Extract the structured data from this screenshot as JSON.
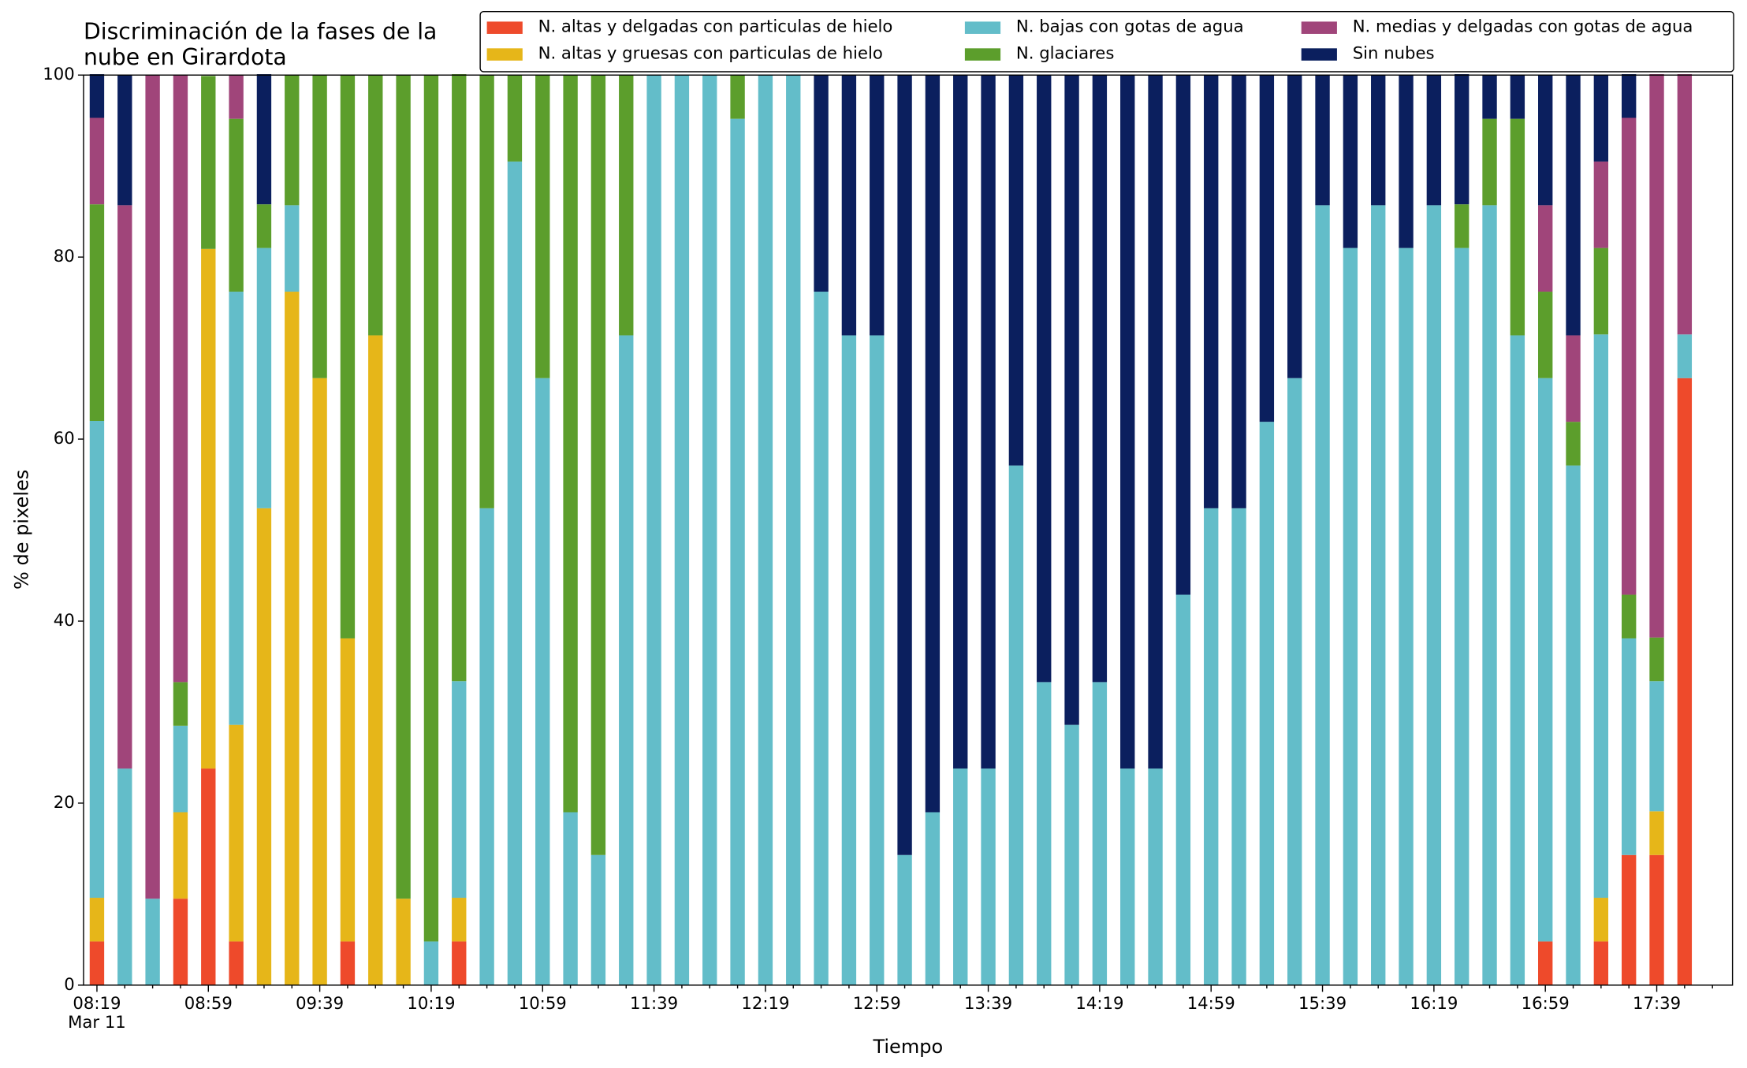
{
  "chart_data": {
    "type": "stacked_bar",
    "title": [
      "Discriminación de la fases de la",
      "nube en Girardota"
    ],
    "xlabel": "Tiempo",
    "ylabel": "% de pixeles",
    "x_sublabel": "Mar 11",
    "categories": [
      "08:19",
      null,
      null,
      null,
      "08:59",
      null,
      null,
      null,
      "09:39",
      null,
      null,
      null,
      "10:19",
      null,
      null,
      null,
      "10:59",
      null,
      null,
      null,
      "11:39",
      null,
      null,
      null,
      "12:19",
      null,
      null,
      null,
      "12:59",
      null,
      null,
      null,
      "13:39",
      null,
      null,
      null,
      "14:19",
      null,
      null,
      null,
      "14:59",
      null,
      null,
      null,
      "15:39",
      null,
      null,
      null,
      "16:19",
      null,
      null,
      null,
      "16:59",
      null,
      null,
      null,
      "17:39",
      null
    ],
    "ylim": [
      0,
      100
    ],
    "yticks": [
      0,
      20,
      40,
      60,
      80,
      100
    ],
    "legend": "top-right",
    "series": [
      {
        "name": "N. altas y delgadas con particulas de hielo",
        "color": "#ee4a2b",
        "values": [
          4.8,
          0,
          0,
          9.5,
          23.8,
          4.8,
          0,
          0,
          0,
          4.8,
          0,
          0,
          0,
          4.8,
          0,
          0,
          0,
          0,
          0,
          0,
          0,
          0,
          0,
          0,
          0,
          0,
          0,
          0,
          0,
          0,
          0,
          0,
          0,
          0,
          0,
          0,
          0,
          0,
          0,
          0,
          0,
          0,
          0,
          0,
          0,
          0,
          0,
          0,
          0,
          0,
          0,
          0,
          4.8,
          0,
          4.8,
          14.3,
          14.3,
          66.7
        ]
      },
      {
        "name": "N. altas y gruesas con particulas de hielo",
        "color": "#e6b619",
        "values": [
          4.8,
          0,
          0,
          9.5,
          57.1,
          23.8,
          52.4,
          76.2,
          66.7,
          33.3,
          71.4,
          9.5,
          0,
          4.8,
          0,
          0,
          0,
          0,
          0,
          0,
          0,
          0,
          0,
          0,
          0,
          0,
          0,
          0,
          0,
          0,
          0,
          0,
          0,
          0,
          0,
          0,
          0,
          0,
          0,
          0,
          0,
          0,
          0,
          0,
          0,
          0,
          0,
          0,
          0,
          0,
          0,
          0,
          0,
          0,
          4.8,
          0,
          4.8,
          0
        ]
      },
      {
        "name": "N. bajas con gotas de agua",
        "color": "#63bdc9",
        "values": [
          52.4,
          23.8,
          9.5,
          9.5,
          0,
          47.6,
          28.6,
          9.5,
          0,
          0,
          0,
          0,
          4.8,
          23.8,
          52.4,
          90.5,
          66.7,
          19.0,
          14.3,
          71.4,
          100,
          100,
          100,
          95.2,
          100,
          100,
          76.2,
          71.4,
          71.4,
          14.3,
          19.0,
          23.8,
          23.8,
          57.1,
          33.3,
          28.6,
          33.3,
          23.8,
          23.8,
          42.9,
          52.4,
          52.4,
          61.9,
          66.7,
          85.7,
          81.0,
          85.7,
          81.0,
          85.7,
          81.0,
          85.7,
          71.4,
          61.9,
          57.1,
          61.9,
          23.8,
          14.3,
          4.8
        ]
      },
      {
        "name": "N. glaciares",
        "color": "#5c9e2c",
        "values": [
          23.8,
          0,
          0,
          4.8,
          19.0,
          19.0,
          4.8,
          14.3,
          33.3,
          61.9,
          28.6,
          90.5,
          95.2,
          66.7,
          47.6,
          9.5,
          33.3,
          81.0,
          85.7,
          28.6,
          0,
          0,
          0,
          4.8,
          0,
          0,
          0,
          0,
          0,
          0,
          0,
          0,
          0,
          0,
          0,
          0,
          0,
          0,
          0,
          0,
          0,
          0,
          0,
          0,
          0,
          0,
          0,
          0,
          0,
          4.8,
          9.5,
          23.8,
          9.5,
          4.8,
          9.5,
          4.8,
          4.8,
          0
        ]
      },
      {
        "name": "N. medias y delgadas con gotas de agua",
        "color": "#a0457a",
        "values": [
          9.5,
          61.9,
          90.5,
          66.7,
          0,
          4.8,
          0,
          0,
          0,
          0,
          0,
          0,
          0,
          0,
          0,
          0,
          0,
          0,
          0,
          0,
          0,
          0,
          0,
          0,
          0,
          0,
          0,
          0,
          0,
          0,
          0,
          0,
          0,
          0,
          0,
          0,
          0,
          0,
          0,
          0,
          0,
          0,
          0,
          0,
          0,
          0,
          0,
          0,
          0,
          0,
          0,
          0,
          9.5,
          9.5,
          9.5,
          52.4,
          61.9,
          28.6
        ]
      },
      {
        "name": "Sin nubes",
        "color": "#0b1f5e",
        "values": [
          4.8,
          14.3,
          0,
          0,
          0,
          0,
          14.3,
          0,
          0,
          0,
          0,
          0,
          0,
          0,
          0,
          0,
          0,
          0,
          0,
          0,
          0,
          0,
          0,
          0,
          0,
          0,
          23.8,
          28.6,
          28.6,
          85.7,
          81.0,
          76.2,
          76.2,
          42.9,
          66.7,
          71.4,
          66.7,
          76.2,
          76.2,
          57.1,
          47.6,
          47.6,
          38.1,
          33.3,
          14.3,
          19.0,
          14.3,
          19.0,
          14.3,
          14.3,
          4.8,
          4.8,
          14.3,
          28.6,
          9.5,
          4.8,
          0,
          0
        ]
      }
    ]
  }
}
